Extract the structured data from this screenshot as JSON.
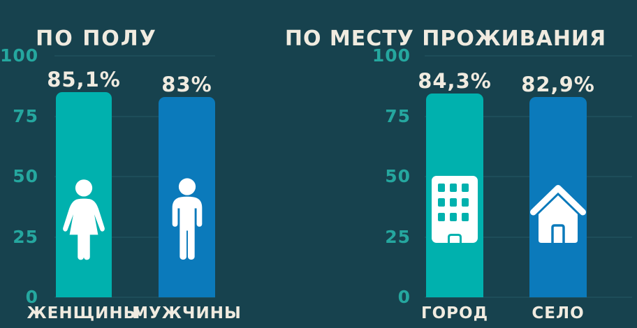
{
  "colors": {
    "background": "#17424e",
    "bar_teal": "#00b1ae",
    "bar_blue": "#0b7abb",
    "axis_tick": "#25a79f",
    "text": "#f0ebe0",
    "gridline": "#1e4d59"
  },
  "chart_data": [
    {
      "type": "bar",
      "title": "ПО ПОЛУ",
      "categories": [
        "ЖЕНЩИНЫ",
        "МУЖЧИНЫ"
      ],
      "values": [
        85.1,
        83
      ],
      "value_labels": [
        "85,1%",
        "83%"
      ],
      "bar_colors": [
        "#00b1ae",
        "#0b7abb"
      ],
      "bar_icons": [
        "woman-icon",
        "man-icon"
      ],
      "ylim": [
        0,
        100
      ],
      "yticks": [
        0,
        25,
        50,
        75,
        100
      ],
      "grid": true,
      "legend": "none"
    },
    {
      "type": "bar",
      "title": "ПО МЕСТУ ПРОЖИВАНИЯ",
      "categories": [
        "ГОРОД",
        "СЕЛО"
      ],
      "values": [
        84.3,
        82.9
      ],
      "value_labels": [
        "84,3%",
        "82,9%"
      ],
      "bar_colors": [
        "#00b1ae",
        "#0b7abb"
      ],
      "bar_icons": [
        "building-icon",
        "house-icon"
      ],
      "ylim": [
        0,
        100
      ],
      "yticks": [
        0,
        25,
        50,
        75,
        100
      ],
      "grid": true,
      "legend": "none"
    }
  ]
}
